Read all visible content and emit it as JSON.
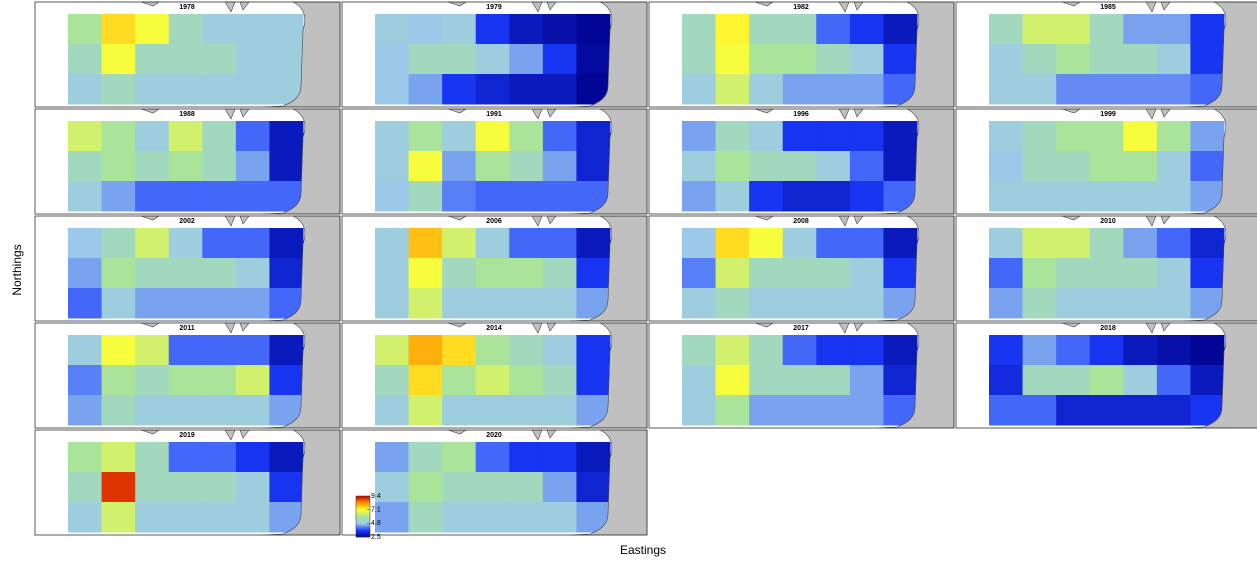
{
  "x_label": "Eastings",
  "y_label": "Northings",
  "colorbar": {
    "range": [
      2.5,
      9.4
    ],
    "ticks": [
      9.4,
      7.1,
      4.8,
      2.5
    ],
    "colors": [
      "#00008b",
      "#1a3cff",
      "#9cc8ea",
      "#a6e3a0",
      "#ffff33",
      "#ff9900",
      "#cc0000"
    ]
  },
  "panels": [
    {
      "title": "1978",
      "values": [
        [
          6,
          7.5,
          7,
          5.5,
          5,
          5,
          5
        ],
        [
          5.5,
          7,
          5.5,
          5.5,
          5.5,
          5,
          5
        ],
        [
          5,
          5.5,
          5,
          5,
          5,
          5,
          5
        ]
      ]
    },
    {
      "title": "1979",
      "values": [
        [
          5,
          4.8,
          5,
          3.5,
          3,
          2.8,
          2.6
        ],
        [
          4.8,
          5.5,
          5.5,
          5,
          4.5,
          3.5,
          2.7
        ],
        [
          4.8,
          4.5,
          3.5,
          3.2,
          3,
          3,
          2.6
        ]
      ]
    },
    {
      "title": "1982",
      "values": [
        [
          5.5,
          7.2,
          5.5,
          5.5,
          4,
          3.5,
          3
        ],
        [
          5.5,
          7,
          6,
          6,
          5.5,
          5,
          3.5
        ],
        [
          5,
          6.5,
          5,
          4.5,
          4.5,
          4.5,
          4
        ]
      ]
    },
    {
      "title": "1985",
      "values": [
        [
          5.5,
          6.5,
          6.5,
          5.5,
          4.5,
          4.5,
          3.5
        ],
        [
          5,
          5.5,
          6,
          5.5,
          5.5,
          5,
          3.5
        ],
        [
          5,
          5,
          4.3,
          4.3,
          4.3,
          4.3,
          4
        ]
      ]
    },
    {
      "title": "1988",
      "values": [
        [
          6.5,
          6,
          5,
          6.5,
          5.5,
          4,
          3
        ],
        [
          5.5,
          6,
          5.5,
          6,
          5.5,
          4.5,
          3
        ],
        [
          5,
          4.5,
          4,
          4,
          4,
          4,
          4
        ]
      ]
    },
    {
      "title": "1991",
      "values": [
        [
          5,
          6,
          5,
          7,
          6,
          4,
          3.2
        ],
        [
          5,
          7,
          4.5,
          6,
          5.5,
          4.5,
          3.2
        ],
        [
          4.8,
          5.5,
          4.2,
          4,
          4,
          4,
          4
        ]
      ]
    },
    {
      "title": "1996",
      "values": [
        [
          4.5,
          5.5,
          5,
          3.5,
          3.5,
          3.5,
          3
        ],
        [
          5,
          6,
          5.5,
          5.5,
          5,
          4,
          3
        ],
        [
          4.5,
          5,
          3.5,
          3.2,
          3.2,
          3.5,
          4
        ]
      ]
    },
    {
      "title": "1999",
      "values": [
        [
          5,
          5.5,
          6,
          6,
          7,
          6,
          4.5
        ],
        [
          4.8,
          5.5,
          5.5,
          6,
          6,
          5,
          4
        ],
        [
          5,
          5,
          5,
          5,
          5,
          5,
          4.5
        ]
      ]
    },
    {
      "title": "2002",
      "values": [
        [
          4.8,
          5.5,
          6.5,
          5,
          4,
          4,
          3
        ],
        [
          4.5,
          6,
          5.5,
          5.5,
          5.5,
          5,
          3.2
        ],
        [
          4,
          5,
          4.5,
          4.5,
          4.5,
          4.5,
          4
        ]
      ]
    },
    {
      "title": "2006",
      "values": [
        [
          5,
          7.8,
          6.5,
          5,
          4,
          4,
          3
        ],
        [
          5,
          7,
          5.5,
          6,
          6,
          5.5,
          3.5
        ],
        [
          5,
          6.5,
          5,
          5,
          5,
          5,
          4.5
        ]
      ]
    },
    {
      "title": "2008",
      "values": [
        [
          4.8,
          7.5,
          7,
          5,
          4,
          4,
          3
        ],
        [
          4.2,
          6.5,
          5.5,
          5.5,
          5.5,
          5,
          3.5
        ],
        [
          5,
          5.5,
          5,
          5,
          5,
          5,
          4.5
        ]
      ]
    },
    {
      "title": "2010",
      "values": [
        [
          5,
          6.5,
          6.5,
          5.5,
          4.5,
          4,
          3.2
        ],
        [
          4,
          6,
          5.5,
          5.5,
          5.5,
          5,
          3.5
        ],
        [
          4.5,
          5.5,
          5,
          5,
          5,
          5,
          4.5
        ]
      ]
    },
    {
      "title": "2011",
      "values": [
        [
          5,
          7,
          6.5,
          4,
          4,
          4,
          3
        ],
        [
          4.2,
          6,
          5.5,
          6,
          6,
          6.5,
          3.5
        ],
        [
          4.5,
          5.5,
          5,
          5,
          5,
          5,
          4.5
        ]
      ]
    },
    {
      "title": "2014",
      "values": [
        [
          6.5,
          8,
          7.5,
          6,
          5.5,
          5,
          3.5
        ],
        [
          5.5,
          7.5,
          6,
          6.5,
          6,
          5.5,
          3.5
        ],
        [
          5,
          6.5,
          5,
          5,
          5,
          5,
          4.5
        ]
      ]
    },
    {
      "title": "2017",
      "values": [
        [
          5.5,
          6.5,
          5.5,
          4,
          3.5,
          3.5,
          3
        ],
        [
          5,
          7,
          5.5,
          5.5,
          5.5,
          4.5,
          3.2
        ],
        [
          5,
          6,
          4.5,
          4.5,
          4.5,
          4.5,
          4
        ]
      ]
    },
    {
      "title": "2018",
      "values": [
        [
          3.5,
          4.5,
          4,
          3.5,
          3,
          2.8,
          2.6
        ],
        [
          3.3,
          5.5,
          5.5,
          6,
          5,
          4,
          3
        ],
        [
          4,
          4,
          3.2,
          3.2,
          3.2,
          3.2,
          3.5
        ]
      ]
    },
    {
      "title": "2019",
      "values": [
        [
          6,
          6.5,
          5.5,
          4,
          4,
          3.5,
          3
        ],
        [
          5.5,
          9,
          5.5,
          5.5,
          5.5,
          5,
          3.5
        ],
        [
          5,
          6.5,
          5,
          5,
          5,
          5,
          4.5
        ]
      ]
    },
    {
      "title": "2020",
      "values": [
        [
          4.5,
          5.5,
          6,
          4,
          3.5,
          3.5,
          3
        ],
        [
          5,
          6,
          5.5,
          5.5,
          5.5,
          4.5,
          3.2
        ],
        [
          4.5,
          5.5,
          5,
          5,
          5,
          5,
          4.5
        ]
      ]
    }
  ]
}
